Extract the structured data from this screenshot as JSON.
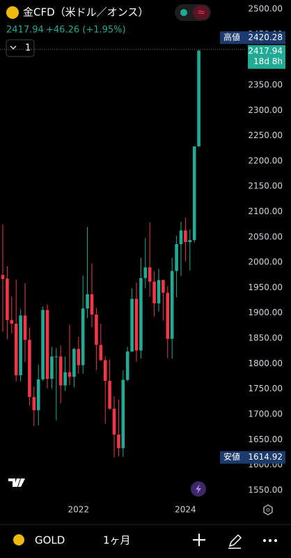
{
  "header": {
    "title": "金CFD（米ドル／オンス）",
    "price": "2417.94",
    "change": "+46.26 (+1.95%)",
    "interval": "1"
  },
  "chart_data": {
    "type": "candlestick",
    "categories": [
      null,
      null,
      null,
      null,
      null,
      null,
      null,
      null,
      null,
      null,
      null,
      null,
      null,
      null,
      null,
      null,
      null,
      "2022",
      null,
      null,
      null,
      null,
      null,
      null,
      null,
      null,
      null,
      null,
      null,
      null,
      null,
      null,
      null,
      null,
      null,
      null,
      null,
      null,
      null,
      null,
      null,
      "2024",
      null,
      null,
      null
    ],
    "open": [
      1975,
      1968,
      1886,
      1879,
      1777,
      1895,
      1847,
      1734,
      1708,
      1769,
      1906,
      1770,
      1814,
      1814,
      1757,
      1783,
      1774,
      1829,
      1797,
      1909,
      1937,
      1897,
      1837,
      1807,
      1766,
      1711,
      1660,
      1633,
      1768,
      1824,
      1928,
      1826,
      1969,
      1990,
      1962,
      1919,
      1965,
      1940,
      1849,
      1983,
      2036,
      2063,
      2040,
      2044,
      2229
    ],
    "high": [
      2075,
      1992,
      1933,
      1966,
      1907,
      1959,
      1871,
      1755,
      1798,
      1913,
      1917,
      1833,
      1831,
      1836,
      1814,
      1877,
      1831,
      1853,
      1974,
      2070,
      1998,
      1910,
      1879,
      1814,
      1808,
      1735,
      1729,
      1787,
      1833,
      1949,
      1960,
      2009,
      2048,
      2079,
      1983,
      1987,
      1966,
      1953,
      2009,
      2052,
      2080,
      2088,
      2065,
      2222,
      2420.28
    ],
    "low": [
      1863,
      1848,
      1860,
      1765,
      1765,
      1803,
      1717,
      1677,
      1678,
      1766,
      1751,
      1751,
      1688,
      1722,
      1746,
      1758,
      1753,
      1780,
      1780,
      1890,
      1872,
      1787,
      1805,
      1681,
      1709,
      1614.92,
      1617,
      1616,
      1765,
      1823,
      1804,
      1810,
      1949,
      1932,
      1893,
      1903,
      1885,
      1811,
      1810,
      1931,
      1973,
      2002,
      1984,
      2039,
      2228
    ],
    "close": [
      1967,
      1886,
      1879,
      1777,
      1895,
      1847,
      1734,
      1708,
      1769,
      1906,
      1770,
      1814,
      1814,
      1757,
      1783,
      1774,
      1829,
      1797,
      1909,
      1937,
      1897,
      1837,
      1807,
      1766,
      1711,
      1660,
      1633,
      1768,
      1824,
      1928,
      1826,
      1969,
      1990,
      1962,
      1919,
      1965,
      1940,
      1849,
      1983,
      2036,
      2063,
      2040,
      2044,
      2229,
      2417.94
    ],
    "up_color": "#22ab94",
    "down_color": "#f23645",
    "ylim": [
      1492,
      2518
    ],
    "yticks": [
      {
        "value": 1550,
        "label": "1550.00"
      },
      {
        "value": 1600,
        "label": "1600.00"
      },
      {
        "value": 1650,
        "label": "1650.00"
      },
      {
        "value": 1700,
        "label": "1700.00"
      },
      {
        "value": 1750,
        "label": "1750.00"
      },
      {
        "value": 1800,
        "label": "1800.00"
      },
      {
        "value": 1850,
        "label": "1850.00"
      },
      {
        "value": 1900,
        "label": "1900.00"
      },
      {
        "value": 1950,
        "label": "1950.00"
      },
      {
        "value": 2000,
        "label": "2000.00"
      },
      {
        "value": 2050,
        "label": "2050.00"
      },
      {
        "value": 2100,
        "label": "2100.00"
      },
      {
        "value": 2150,
        "label": "2150.00"
      },
      {
        "value": 2200,
        "label": "2200.00"
      },
      {
        "value": 2250,
        "label": "2250.00"
      },
      {
        "value": 2300,
        "label": "2300.00"
      },
      {
        "value": 2350,
        "label": "2350.00"
      },
      {
        "value": 2400,
        "label": "2400.00"
      },
      {
        "value": 2450,
        "label": "2450.00"
      },
      {
        "value": 2500,
        "label": "2500.00"
      }
    ],
    "high_label": "高値",
    "high_value": "2420.28",
    "low_label": "安値",
    "low_value": "1614.92",
    "last_value": "2417.94",
    "countdown": "18d 8h"
  },
  "footer": {
    "symbol": "GOLD",
    "timeframe": "1ヶ月"
  }
}
